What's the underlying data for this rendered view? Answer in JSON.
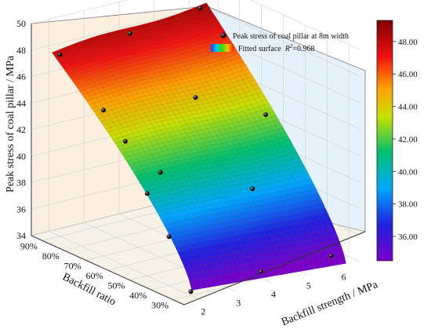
{
  "chart_data": {
    "type": "surface3d",
    "title": "",
    "xlabel": "Backfill strength / MPa",
    "ylabel": "Backfill ratio",
    "zlabel": "Peak stress of coal pillar / MPa",
    "x_ticks": [
      "2",
      "3",
      "4",
      "5",
      "6"
    ],
    "y_ticks": [
      "30%",
      "40%",
      "50%",
      "60%",
      "70%",
      "80%",
      "90%"
    ],
    "z_ticks": [
      "34",
      "36",
      "38",
      "40",
      "42",
      "44",
      "46",
      "48",
      "50"
    ],
    "xlim": [
      1.5,
      6.5
    ],
    "ylim": [
      0.25,
      0.95
    ],
    "zlim": [
      34,
      50
    ],
    "colorbar": {
      "ticks": [
        "36.00",
        "38.00",
        "40.00",
        "42.00",
        "44.00",
        "46.00",
        "48.00"
      ],
      "range": [
        34.5,
        49.3
      ]
    },
    "legend": {
      "placement": "top-right",
      "entries": [
        {
          "label": "Peak stress of coal pillar at 8m width",
          "kind": "scatter"
        },
        {
          "label": "Fitted surface",
          "kind": "surface",
          "annotation_prefix": "R",
          "annotation_sup": "2",
          "annotation_value": "=0.968"
        }
      ]
    },
    "scatter_points": [
      {
        "x": 2,
        "y": 0.9,
        "z": 47.7
      },
      {
        "x": 2,
        "y": 0.7,
        "z": 45.0
      },
      {
        "x": 2,
        "y": 0.6,
        "z": 43.4
      },
      {
        "x": 2,
        "y": 0.5,
        "z": 40.2
      },
      {
        "x": 2,
        "y": 0.4,
        "z": 37.7
      },
      {
        "x": 2,
        "y": 0.3,
        "z": 34.3
      },
      {
        "x": 4,
        "y": 0.9,
        "z": 48.0
      },
      {
        "x": 4,
        "y": 0.6,
        "z": 45.4
      },
      {
        "x": 4,
        "y": 0.3,
        "z": 34.5
      },
      {
        "x": 6,
        "y": 0.9,
        "z": 48.6
      },
      {
        "x": 6,
        "y": 0.6,
        "z": 42.8
      },
      {
        "x": 6,
        "y": 0.3,
        "z": 34.4
      },
      {
        "x": 3,
        "y": 0.6,
        "z": 40.4
      },
      {
        "x": 5,
        "y": 0.5,
        "z": 38.6
      }
    ]
  }
}
